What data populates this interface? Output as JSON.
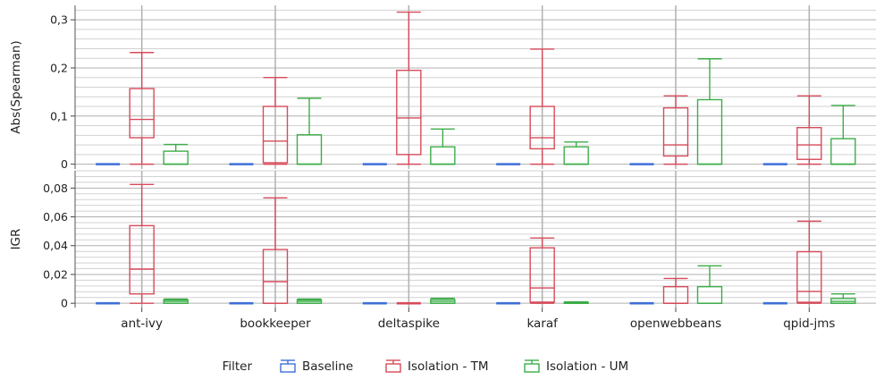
{
  "chart_data": {
    "type": "boxplot",
    "legend": {
      "title": "Filter",
      "placement": "bottom-center",
      "entries": [
        "Baseline",
        "Isolation - TM",
        "Isolation - UM"
      ]
    },
    "colors": {
      "Baseline": "#3f6fd8",
      "Isolation - TM": "#d64b5a",
      "Isolation - UM": "#3cad48",
      "grid_major": "#b0b0b0",
      "grid_minor": "#d2d2d2"
    },
    "categories": [
      "ant-ivy",
      "bookkeeper",
      "deltaspike",
      "karaf",
      "openwebbeans",
      "qpid-jms"
    ],
    "panels": [
      {
        "ylabel": "Abs(Spearman)",
        "ylim": [
          -0.01,
          0.33
        ],
        "yticks": [
          0,
          0.1,
          0.2,
          0.3
        ],
        "ytick_labels": [
          "0",
          "0,1",
          "0,2",
          "0,3"
        ],
        "grid": true,
        "series": [
          {
            "name": "Baseline",
            "boxes": [
              {
                "min": 0,
                "q1": 0,
                "median": 0,
                "q3": 0,
                "max": 0
              },
              {
                "min": 0,
                "q1": 0,
                "median": 0,
                "q3": 0,
                "max": 0
              },
              {
                "min": 0,
                "q1": 0,
                "median": 0,
                "q3": 0,
                "max": 0
              },
              {
                "min": 0,
                "q1": 0,
                "median": 0,
                "q3": 0,
                "max": 0
              },
              {
                "min": 0,
                "q1": 0,
                "median": 0,
                "q3": 0,
                "max": 0
              },
              {
                "min": 0,
                "q1": 0,
                "median": 0,
                "q3": 0,
                "max": 0
              }
            ]
          },
          {
            "name": "Isolation - TM",
            "boxes": [
              {
                "min": 0,
                "q1": 0.055,
                "median": 0.093,
                "q3": 0.157,
                "max": 0.232
              },
              {
                "min": 0,
                "q1": 0.003,
                "median": 0.048,
                "q3": 0.12,
                "max": 0.18
              },
              {
                "min": 0,
                "q1": 0.02,
                "median": 0.096,
                "q3": 0.195,
                "max": 0.316
              },
              {
                "min": 0,
                "q1": 0.032,
                "median": 0.055,
                "q3": 0.12,
                "max": 0.239
              },
              {
                "min": 0,
                "q1": 0.017,
                "median": 0.04,
                "q3": 0.117,
                "max": 0.142
              },
              {
                "min": 0,
                "q1": 0.01,
                "median": 0.04,
                "q3": 0.076,
                "max": 0.142
              }
            ]
          },
          {
            "name": "Isolation - UM",
            "boxes": [
              {
                "min": 0,
                "q1": 0,
                "median": 0,
                "q3": 0.027,
                "max": 0.041
              },
              {
                "min": 0,
                "q1": 0,
                "median": 0,
                "q3": 0.061,
                "max": 0.137
              },
              {
                "min": 0,
                "q1": 0,
                "median": 0,
                "q3": 0.036,
                "max": 0.073
              },
              {
                "min": 0,
                "q1": 0,
                "median": 0,
                "q3": 0.036,
                "max": 0.046
              },
              {
                "min": 0,
                "q1": 0,
                "median": 0,
                "q3": 0.134,
                "max": 0.219
              },
              {
                "min": 0,
                "q1": 0,
                "median": 0,
                "q3": 0.053,
                "max": 0.122
              }
            ]
          }
        ]
      },
      {
        "ylabel": "IGR",
        "ylim": [
          -0.003,
          0.092
        ],
        "yticks": [
          0,
          0.02,
          0.04,
          0.06,
          0.08
        ],
        "ytick_labels": [
          "0",
          "0,02",
          "0,04",
          "0,06",
          "0,08"
        ],
        "grid": true,
        "series": [
          {
            "name": "Baseline",
            "boxes": [
              {
                "min": 0,
                "q1": 0,
                "median": 0,
                "q3": 0,
                "max": 0
              },
              {
                "min": 0,
                "q1": 0,
                "median": 0,
                "q3": 0,
                "max": 0
              },
              {
                "min": 0,
                "q1": 0,
                "median": 0,
                "q3": 0,
                "max": 0
              },
              {
                "min": 0,
                "q1": 0,
                "median": 0,
                "q3": 0,
                "max": 0
              },
              {
                "min": 0,
                "q1": 0,
                "median": 0,
                "q3": 0,
                "max": 0
              },
              {
                "min": 0,
                "q1": 0,
                "median": 0,
                "q3": 0,
                "max": 0
              }
            ]
          },
          {
            "name": "Isolation - TM",
            "boxes": [
              {
                "min": 0,
                "q1": 0.0065,
                "median": 0.0237,
                "q3": 0.0539,
                "max": 0.0825
              },
              {
                "min": 0,
                "q1": 0,
                "median": 0.015,
                "q3": 0.0373,
                "max": 0.0732
              },
              {
                "min": 0,
                "q1": 0,
                "median": 0,
                "q3": 0,
                "max": 0
              },
              {
                "min": 0,
                "q1": 0.0008,
                "median": 0.0106,
                "q3": 0.0385,
                "max": 0.0453
              },
              {
                "min": 0,
                "q1": 0,
                "median": 0,
                "q3": 0.0115,
                "max": 0.0172
              },
              {
                "min": 0,
                "q1": 0.0007,
                "median": 0.0082,
                "q3": 0.0358,
                "max": 0.057
              }
            ]
          },
          {
            "name": "Isolation - UM",
            "boxes": [
              {
                "min": 0,
                "q1": 0,
                "median": 0.0013,
                "q3": 0.0023,
                "max": 0.0029
              },
              {
                "min": 0,
                "q1": 0,
                "median": 0.0013,
                "q3": 0.0023,
                "max": 0.0029
              },
              {
                "min": 0,
                "q1": 0,
                "median": 0.0013,
                "q3": 0.0026,
                "max": 0.0035
              },
              {
                "min": 0,
                "q1": 0,
                "median": 0,
                "q3": 0.0006,
                "max": 0.001
              },
              {
                "min": 0,
                "q1": 0,
                "median": 0,
                "q3": 0.0115,
                "max": 0.026
              },
              {
                "min": 0,
                "q1": 0,
                "median": 0.0013,
                "q3": 0.0033,
                "max": 0.0065
              }
            ]
          }
        ]
      }
    ]
  }
}
